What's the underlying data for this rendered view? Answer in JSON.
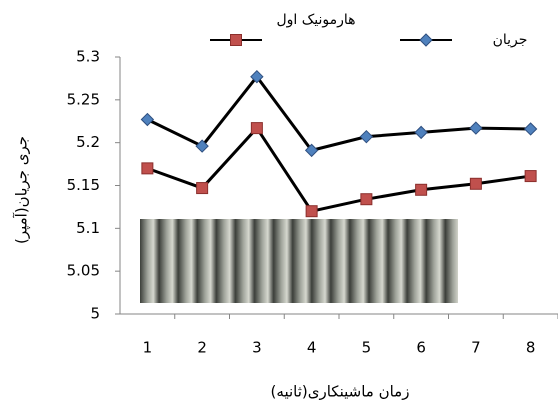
{
  "chart_data": {
    "type": "line",
    "y_label": "جری جریان(آمپر)",
    "x_label": "زمان ماشینکاری(ثانیه)",
    "categories": [
      "1",
      "2",
      "3",
      "4",
      "5",
      "6",
      "7",
      "8"
    ],
    "series": [
      {
        "name": "هارمونیک اول",
        "color": "#c0504d",
        "marker": "square",
        "values": [
          5.17,
          5.147,
          5.217,
          5.12,
          5.134,
          5.145,
          5.152,
          5.161
        ]
      },
      {
        "name": "جریان",
        "color": "#4f81bd",
        "marker": "diamond",
        "values": [
          5.227,
          5.196,
          5.277,
          5.191,
          5.207,
          5.212,
          5.217,
          5.216
        ]
      }
    ],
    "ylim": [
      5,
      5.3
    ],
    "yticks": [
      5,
      5.05,
      5.1,
      5.15,
      5.2,
      5.25,
      5.3
    ],
    "grid": false
  }
}
